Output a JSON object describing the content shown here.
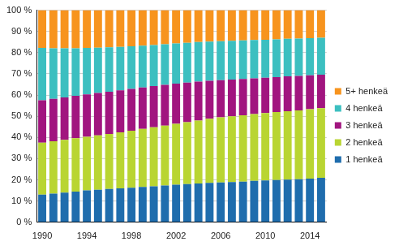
{
  "chart_data": {
    "type": "bar",
    "stacked": true,
    "grid": true,
    "legend": "right",
    "categories": [
      1990,
      null,
      null,
      null,
      1994,
      null,
      null,
      null,
      1998,
      null,
      null,
      null,
      2002,
      null,
      null,
      null,
      2006,
      null,
      null,
      null,
      2010,
      null,
      null,
      null,
      2014,
      null
    ],
    "ylim": [
      0,
      100
    ],
    "yticks": [
      {
        "value": 0,
        "label": "0 %"
      },
      {
        "value": 10,
        "label": "10 %"
      },
      {
        "value": 20,
        "label": "20 %"
      },
      {
        "value": 30,
        "label": "30 %"
      },
      {
        "value": 40,
        "label": "40 %"
      },
      {
        "value": 50,
        "label": "50 %"
      },
      {
        "value": 60,
        "label": "60 %"
      },
      {
        "value": 70,
        "label": "70 %"
      },
      {
        "value": 80,
        "label": "80 %"
      },
      {
        "value": 90,
        "label": "90 %"
      },
      {
        "value": 100,
        "label": "100 %"
      }
    ],
    "series": [
      {
        "name": "1 henkeä",
        "color": "#1f6dad",
        "values": [
          13,
          13.5,
          14,
          14.5,
          15,
          15.3,
          15.7,
          16,
          16.3,
          16.7,
          17,
          17.3,
          17.7,
          18,
          18.3,
          18.6,
          18.8,
          19,
          19.2,
          19.5,
          19.7,
          19.9,
          20.1,
          20.3,
          20.6,
          21
        ]
      },
      {
        "name": "2 henkeä",
        "color": "#b9d532",
        "values": [
          24.5,
          24.7,
          24.9,
          25.1,
          25.3,
          25.7,
          26,
          26.4,
          26.9,
          27.3,
          27.8,
          28.3,
          28.7,
          29.2,
          29.7,
          30.2,
          30.7,
          31,
          31.3,
          31.5,
          31.8,
          32.1,
          32.3,
          32.5,
          32.7,
          32.8
        ]
      },
      {
        "name": "3 henkeä",
        "color": "#a1157f",
        "values": [
          20,
          20,
          20,
          20,
          20,
          20,
          19.9,
          19.8,
          19.7,
          19.6,
          19.4,
          19.2,
          19,
          18.7,
          18.3,
          17.9,
          17.5,
          17.3,
          17.1,
          16.9,
          16.7,
          16.5,
          16.4,
          16.2,
          16,
          15.8
        ]
      },
      {
        "name": "4 henkeä",
        "color": "#3cbfc0",
        "values": [
          24.7,
          23.8,
          23.1,
          22.4,
          21.9,
          21.3,
          20.9,
          20.5,
          20.1,
          19.7,
          19.4,
          19.2,
          18.9,
          18.7,
          18.7,
          18.5,
          18.4,
          18.3,
          18.2,
          18.1,
          17.9,
          17.8,
          17.7,
          17.6,
          17.5,
          17.4
        ]
      },
      {
        "name": "5+ henkeä",
        "color": "#f7941e",
        "values": [
          17.8,
          18,
          18,
          18,
          17.8,
          17.7,
          17.5,
          17.3,
          17,
          16.7,
          16.4,
          16,
          15.7,
          15.4,
          15,
          14.8,
          14.6,
          14.4,
          14.2,
          14,
          13.9,
          13.7,
          13.5,
          13.4,
          13.2,
          13
        ]
      }
    ]
  }
}
